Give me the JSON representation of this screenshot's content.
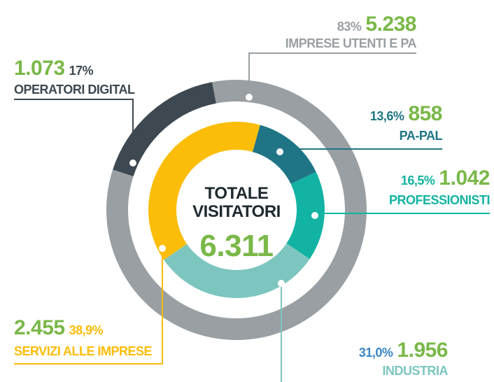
{
  "chart_data": {
    "type": "donut",
    "center_title": [
      "TOTALE",
      "VISITATORI"
    ],
    "total": 6311,
    "total_label": "6.311",
    "total_color": "#7ab848",
    "number_color": "#7ab848",
    "series": [
      {
        "name": "OPERATORI DIGITAL",
        "ring": "outer",
        "color": "#3d4850",
        "label_color": "#3d4850",
        "value": 1073,
        "value_label": "1.073",
        "percent": 17,
        "percent_label": "17%"
      },
      {
        "name": "IMPRESE UTENTI E PA",
        "ring": "outer",
        "color": "#999fa2",
        "label_color": "#999fa2",
        "value": 5238,
        "value_label": "5.238",
        "percent": 83,
        "percent_label": "83%"
      },
      {
        "name": "PA-PAL",
        "ring": "inner",
        "color": "#1f7585",
        "label_color": "#1f7585",
        "value": 858,
        "value_label": "858",
        "percent": 13.6,
        "percent_label": "13,6%"
      },
      {
        "name": "PROFESSIONISTI",
        "ring": "inner",
        "color": "#12b3a2",
        "label_color": "#12b3a2",
        "value": 1042,
        "value_label": "1.042",
        "percent": 16.5,
        "percent_label": "16,5%"
      },
      {
        "name": "INDUSTRIA",
        "ring": "inner",
        "color": "#7cc6bf",
        "label_color": "#7cc6bf",
        "pct_color": "#3a86c8",
        "value": 1956,
        "value_label": "1.956",
        "percent": 31.0,
        "percent_label": "31,0%"
      },
      {
        "name": "SERVIZI ALLE IMPRESE",
        "ring": "inner",
        "color": "#fbbd08",
        "label_color": "#fbbd08",
        "value": 2455,
        "value_label": "2.455",
        "percent": 38.9,
        "percent_label": "38,9%"
      }
    ]
  }
}
